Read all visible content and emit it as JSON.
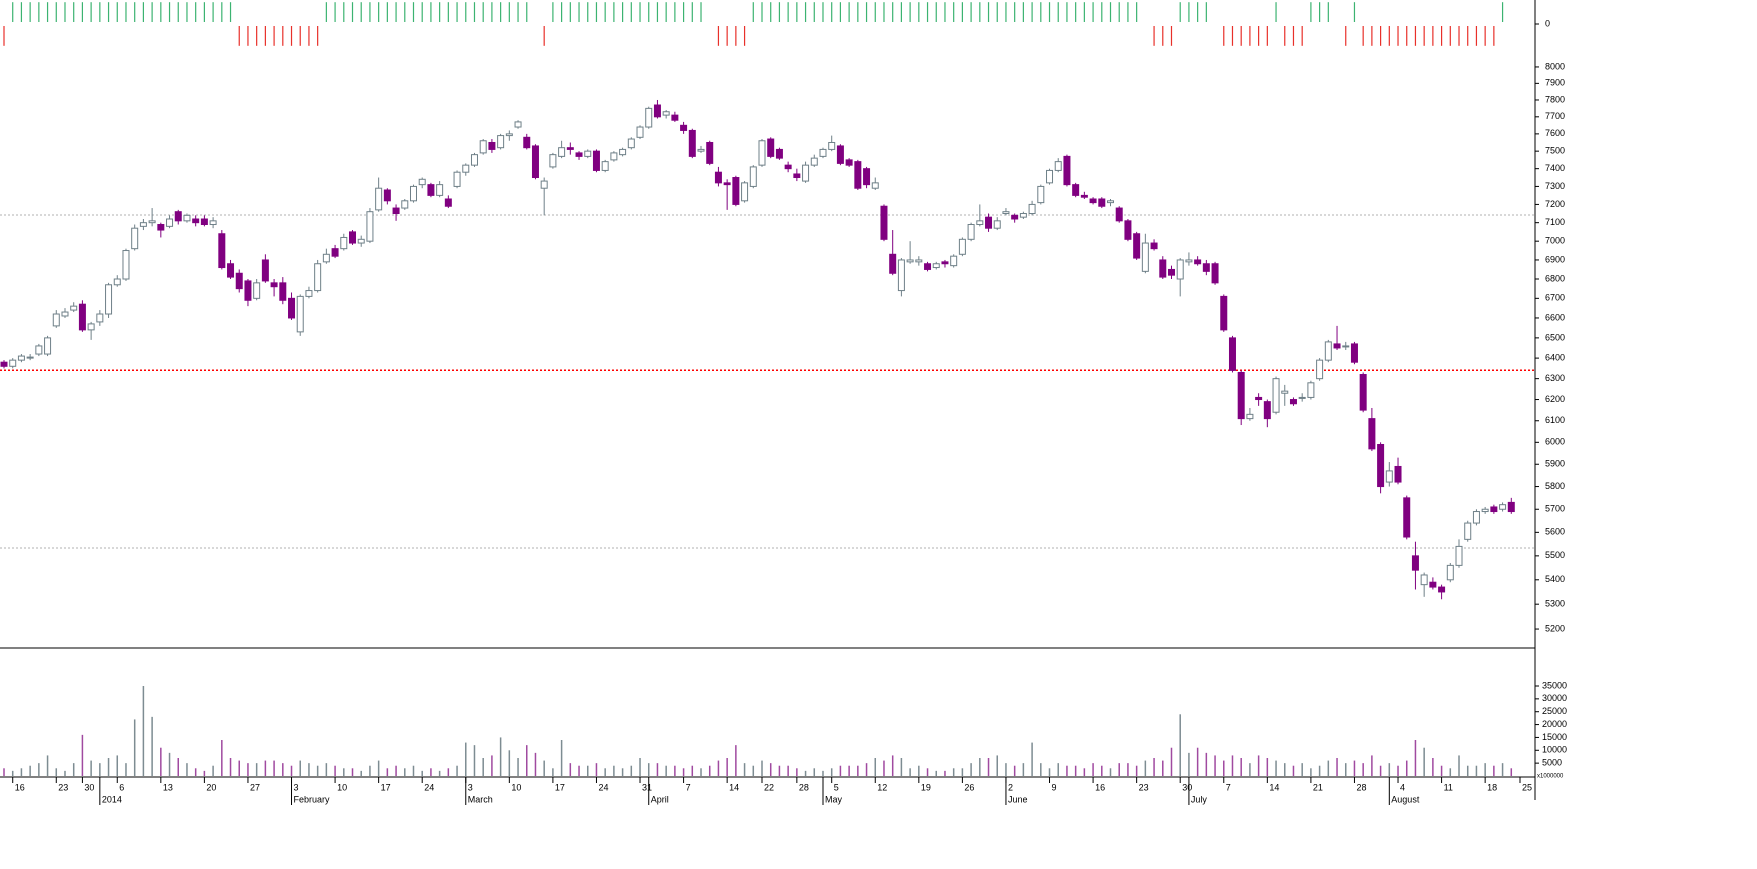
{
  "chart_data": {
    "type": "candlestick",
    "log_scale": true,
    "categories": [
      null,
      "16",
      null,
      null,
      null,
      null,
      "23",
      null,
      null,
      "30",
      null,
      null,
      null,
      "6",
      null,
      null,
      null,
      null,
      "13",
      null,
      null,
      null,
      null,
      "20",
      null,
      null,
      null,
      null,
      "27",
      null,
      null,
      null,
      null,
      "3",
      null,
      null,
      null,
      null,
      "10",
      null,
      null,
      null,
      null,
      "17",
      null,
      null,
      null,
      null,
      "24",
      null,
      null,
      null,
      null,
      "3",
      null,
      null,
      null,
      null,
      "10",
      null,
      null,
      null,
      null,
      "17",
      null,
      null,
      null,
      null,
      "24",
      null,
      null,
      null,
      null,
      "31",
      null,
      null,
      null,
      null,
      "7",
      null,
      null,
      null,
      null,
      "14",
      null,
      null,
      null,
      "22",
      null,
      null,
      null,
      "28",
      null,
      null,
      null,
      "5",
      null,
      null,
      null,
      null,
      "12",
      null,
      null,
      null,
      null,
      "19",
      null,
      null,
      null,
      null,
      "26",
      null,
      null,
      null,
      null,
      "2",
      null,
      null,
      null,
      null,
      "9",
      null,
      null,
      null,
      null,
      "16",
      null,
      null,
      null,
      null,
      "23",
      null,
      null,
      null,
      null,
      "30",
      null,
      null,
      null,
      null,
      "7",
      null,
      null,
      null,
      null,
      "14",
      null,
      null,
      null,
      null,
      "21",
      null,
      null,
      null,
      null,
      "28",
      null,
      null,
      null,
      null,
      "4",
      null,
      null,
      null,
      null,
      "11",
      null,
      null,
      null,
      null,
      "18",
      null,
      null,
      null,
      "25"
    ],
    "periods": [
      null,
      null,
      null,
      null,
      null,
      null,
      null,
      null,
      null,
      null,
      null,
      "2014",
      null,
      null,
      null,
      null,
      null,
      null,
      null,
      null,
      null,
      null,
      null,
      null,
      null,
      null,
      null,
      null,
      null,
      null,
      null,
      null,
      null,
      "February",
      null,
      null,
      null,
      null,
      null,
      null,
      null,
      null,
      null,
      null,
      null,
      null,
      null,
      null,
      null,
      null,
      null,
      null,
      null,
      "March",
      null,
      null,
      null,
      null,
      null,
      null,
      null,
      null,
      null,
      null,
      null,
      null,
      null,
      null,
      null,
      null,
      null,
      null,
      null,
      null,
      "April",
      null,
      null,
      null,
      null,
      null,
      null,
      null,
      null,
      null,
      null,
      null,
      null,
      null,
      null,
      null,
      null,
      null,
      null,
      null,
      "May",
      null,
      null,
      null,
      null,
      null,
      null,
      null,
      null,
      null,
      null,
      null,
      null,
      null,
      null,
      null,
      null,
      null,
      null,
      null,
      null,
      "June",
      null,
      null,
      null,
      null,
      null,
      null,
      null,
      null,
      null,
      null,
      null,
      null,
      null,
      null,
      null,
      null,
      null,
      null,
      null,
      null,
      "July",
      null,
      null,
      null,
      null,
      null,
      null,
      null,
      null,
      null,
      null,
      null,
      null,
      null,
      null,
      null,
      null,
      null,
      null,
      null,
      null,
      null,
      null,
      "August",
      null,
      null,
      null,
      null,
      null,
      null,
      null,
      null,
      null,
      null,
      null,
      null,
      null,
      null,
      null
    ],
    "open": [
      6380,
      6360,
      6390,
      6400,
      6420,
      6420,
      6560,
      6610,
      6640,
      6670,
      6540,
      6580,
      6620,
      6770,
      6800,
      6960,
      7080,
      7100,
      7090,
      7080,
      7160,
      7110,
      7120,
      7120,
      7090,
      7040,
      6880,
      6830,
      6790,
      6700,
      6900,
      6780,
      6780,
      6700,
      6530,
      6710,
      6740,
      6890,
      6960,
      6960,
      7050,
      6990,
      7000,
      7170,
      7280,
      7180,
      7180,
      7220,
      7310,
      7310,
      7250,
      7230,
      7300,
      7380,
      7420,
      7490,
      7550,
      7520,
      7590,
      7640,
      7580,
      7530,
      7290,
      7410,
      7470,
      7520,
      7490,
      7470,
      7500,
      7390,
      7450,
      7480,
      7520,
      7580,
      7640,
      7770,
      7710,
      7710,
      7650,
      7620,
      7500,
      7550,
      7380,
      7320,
      7350,
      7220,
      7300,
      7420,
      7570,
      7510,
      7420,
      7370,
      7330,
      7420,
      7470,
      7510,
      7530,
      7450,
      7440,
      7400,
      7290,
      7190,
      6930,
      6740,
      6890,
      6890,
      6880,
      6860,
      6890,
      6870,
      6930,
      7010,
      7090,
      7130,
      7070,
      7150,
      7140,
      7130,
      7150,
      7210,
      7320,
      7390,
      7470,
      7310,
      7250,
      7230,
      7230,
      7210,
      7180,
      7110,
      7040,
      6840,
      6990,
      6900,
      6850,
      6800,
      6890,
      6900,
      6880,
      6880,
      6710,
      6500,
      6330,
      6110,
      6210,
      6190,
      6140,
      6230,
      6200,
      6210,
      6210,
      6300,
      6390,
      6470,
      6460,
      6470,
      6320,
      6110,
      5990,
      5820,
      5890,
      5750,
      5500,
      5380,
      5390,
      5370,
      5400,
      5460,
      5570,
      5640,
      5690,
      5710,
      5700,
      5730,
      null
    ],
    "high": [
      6390,
      6400,
      6420,
      6420,
      6470,
      6510,
      6640,
      6650,
      6680,
      6690,
      6580,
      6640,
      6780,
      6820,
      6960,
      7090,
      7120,
      7180,
      7100,
      7140,
      7170,
      7150,
      7140,
      7140,
      7130,
      7060,
      6900,
      6850,
      6800,
      6800,
      6930,
      6800,
      6810,
      6730,
      6720,
      6760,
      6900,
      6960,
      6980,
      7040,
      7060,
      7030,
      7180,
      7350,
      7290,
      7200,
      7230,
      7310,
      7350,
      7320,
      7330,
      7250,
      7390,
      7430,
      7490,
      7570,
      7570,
      7600,
      7620,
      7680,
      7600,
      7540,
      7350,
      7490,
      7560,
      7550,
      7500,
      7510,
      7510,
      7450,
      7500,
      7520,
      7580,
      7650,
      7760,
      7800,
      7740,
      7730,
      7670,
      7630,
      7530,
      7560,
      7410,
      7340,
      7360,
      7330,
      7420,
      7570,
      7580,
      7520,
      7440,
      7400,
      7440,
      7480,
      7520,
      7590,
      7540,
      7460,
      7450,
      7410,
      7350,
      7200,
      7060,
      6910,
      7000,
      6920,
      6890,
      6890,
      6900,
      6930,
      7020,
      7100,
      7200,
      7150,
      7130,
      7180,
      7150,
      7160,
      7220,
      7310,
      7400,
      7460,
      7480,
      7320,
      7270,
      7240,
      7240,
      7230,
      7190,
      7120,
      7050,
      7040,
      7010,
      6920,
      6870,
      6910,
      6940,
      6920,
      6900,
      6890,
      6720,
      6510,
      6340,
      6160,
      6230,
      6200,
      6310,
      6270,
      6210,
      6230,
      6290,
      6400,
      6490,
      6560,
      6480,
      6480,
      6330,
      6160,
      6000,
      5910,
      5930,
      5760,
      5560,
      5430,
      5410,
      5380,
      5470,
      5570,
      5650,
      5700,
      5710,
      5720,
      5730,
      5750,
      null
    ],
    "low": [
      6350,
      6350,
      6380,
      6390,
      6410,
      6410,
      6550,
      6600,
      6630,
      6530,
      6490,
      6560,
      6600,
      6760,
      6790,
      6950,
      7060,
      7080,
      7020,
      7070,
      7090,
      7100,
      7080,
      7080,
      7070,
      6850,
      6800,
      6730,
      6660,
      6690,
      6780,
      6710,
      6670,
      6590,
      6510,
      6700,
      6730,
      6880,
      6910,
      6950,
      6980,
      6970,
      6990,
      7160,
      7200,
      7110,
      7170,
      7210,
      7290,
      7240,
      7240,
      7180,
      7290,
      7360,
      7410,
      7480,
      7490,
      7510,
      7560,
      7630,
      7510,
      7340,
      7140,
      7400,
      7460,
      7480,
      7450,
      7460,
      7380,
      7380,
      7440,
      7470,
      7510,
      7570,
      7630,
      7690,
      7690,
      7670,
      7600,
      7460,
      7490,
      7420,
      7300,
      7170,
      7190,
      7210,
      7290,
      7410,
      7460,
      7450,
      7380,
      7330,
      7320,
      7410,
      7460,
      7500,
      7420,
      7410,
      7280,
      7290,
      7280,
      7000,
      6820,
      6710,
      6880,
      6870,
      6840,
      6850,
      6860,
      6860,
      6920,
      7000,
      7080,
      7050,
      7060,
      7140,
      7100,
      7120,
      7140,
      7200,
      7310,
      7380,
      7300,
      7240,
      7230,
      7200,
      7180,
      7190,
      7100,
      7000,
      6900,
      6830,
      6950,
      6800,
      6800,
      6710,
      6870,
      6870,
      6820,
      6770,
      6530,
      6330,
      6080,
      6100,
      6170,
      6070,
      6130,
      6170,
      6170,
      6190,
      6200,
      6290,
      6380,
      6440,
      6440,
      6370,
      6140,
      5960,
      5770,
      5800,
      5810,
      5570,
      5360,
      5330,
      5360,
      5320,
      5390,
      5450,
      5560,
      5630,
      5680,
      5680,
      5690,
      5680,
      null
    ],
    "close": [
      6360,
      6390,
      6410,
      6405,
      6460,
      6500,
      6620,
      6630,
      6660,
      6540,
      6570,
      6620,
      6770,
      6800,
      6950,
      7070,
      7100,
      7110,
      7060,
      7120,
      7110,
      7140,
      7100,
      7090,
      7110,
      6860,
      6810,
      6750,
      6690,
      6780,
      6790,
      6760,
      6690,
      6600,
      6710,
      6740,
      6880,
      6930,
      6920,
      7020,
      6990,
      7010,
      7160,
      7290,
      7220,
      7150,
      7220,
      7300,
      7340,
      7250,
      7310,
      7190,
      7380,
      7420,
      7480,
      7560,
      7510,
      7590,
      7600,
      7670,
      7520,
      7350,
      7330,
      7480,
      7520,
      7510,
      7470,
      7500,
      7390,
      7440,
      7490,
      7510,
      7570,
      7640,
      7750,
      7700,
      7730,
      7680,
      7620,
      7470,
      7510,
      7430,
      7320,
      7310,
      7200,
      7320,
      7410,
      7560,
      7470,
      7460,
      7400,
      7350,
      7420,
      7460,
      7510,
      7550,
      7430,
      7420,
      7290,
      7310,
      7320,
      7010,
      6830,
      6900,
      6900,
      6900,
      6850,
      6880,
      6880,
      6920,
      7010,
      7090,
      7110,
      7070,
      7110,
      7160,
      7120,
      7150,
      7200,
      7300,
      7390,
      7440,
      7310,
      7250,
      7240,
      7210,
      7190,
      7220,
      7110,
      7010,
      6910,
      6990,
      6960,
      6810,
      6820,
      6900,
      6900,
      6880,
      6840,
      6780,
      6540,
      6340,
      6110,
      6130,
      6200,
      6110,
      6300,
      6240,
      6180,
      6210,
      6280,
      6390,
      6480,
      6450,
      6460,
      6380,
      6150,
      5970,
      5800,
      5870,
      5820,
      5580,
      5440,
      5420,
      5370,
      5350,
      5460,
      5540,
      5640,
      5690,
      5700,
      5690,
      5720,
      5690,
      null
    ],
    "volume": [
      3000,
      2000,
      3000,
      4000,
      5000,
      8000,
      3000,
      2000,
      5000,
      16000,
      6000,
      5000,
      7000,
      8000,
      5000,
      22000,
      35000,
      23000,
      11000,
      9000,
      7000,
      5000,
      3000,
      2000,
      4000,
      14000,
      7000,
      6000,
      5000,
      5000,
      6000,
      6000,
      5000,
      4000,
      6000,
      5000,
      4000,
      5000,
      4000,
      3000,
      3000,
      2000,
      4000,
      6000,
      3000,
      4000,
      3000,
      4000,
      2000,
      3000,
      2000,
      3000,
      4000,
      13000,
      12000,
      7000,
      8000,
      15000,
      10000,
      7000,
      12000,
      9000,
      6000,
      3000,
      14000,
      5000,
      4000,
      4000,
      5000,
      3000,
      4000,
      3000,
      4000,
      7000,
      5000,
      5000,
      4000,
      4000,
      3000,
      4000,
      3000,
      4000,
      6000,
      7000,
      12000,
      5000,
      4000,
      6000,
      5000,
      4000,
      4000,
      3000,
      2000,
      3000,
      2000,
      3000,
      4000,
      4000,
      4000,
      5000,
      7000,
      6000,
      8000,
      7000,
      3000,
      4000,
      3000,
      2000,
      2000,
      3000,
      3000,
      5000,
      7000,
      7000,
      8000,
      5000,
      4000,
      5000,
      13000,
      5000,
      3000,
      5000,
      4000,
      4000,
      3000,
      5000,
      4000,
      3000,
      5000,
      5000,
      4000,
      6000,
      7000,
      6000,
      11000,
      24000,
      9000,
      11000,
      9000,
      8000,
      6000,
      8000,
      7000,
      5000,
      8000,
      7000,
      6000,
      5000,
      4000,
      5000,
      3000,
      4000,
      6000,
      7000,
      5000,
      6000,
      5000,
      8000,
      4000,
      5000,
      4000,
      6000,
      14000,
      11000,
      7000,
      4000,
      3000,
      8000,
      4000,
      4000,
      5000,
      4000,
      5000,
      3000,
      null
    ],
    "signal": [
      -1,
      1,
      1,
      1,
      1,
      1,
      1,
      1,
      1,
      1,
      1,
      1,
      1,
      1,
      1,
      1,
      1,
      1,
      1,
      1,
      1,
      1,
      1,
      1,
      1,
      1,
      1,
      -1,
      -1,
      -1,
      -1,
      -1,
      -1,
      -1,
      -1,
      -1,
      -1,
      1,
      1,
      1,
      1,
      1,
      1,
      1,
      1,
      1,
      1,
      1,
      1,
      1,
      1,
      1,
      1,
      1,
      1,
      1,
      1,
      1,
      1,
      1,
      1,
      0,
      -1,
      1,
      1,
      1,
      1,
      1,
      1,
      1,
      1,
      1,
      1,
      1,
      1,
      1,
      1,
      1,
      1,
      1,
      1,
      0,
      -1,
      -1,
      -1,
      -1,
      1,
      1,
      1,
      1,
      1,
      1,
      1,
      1,
      1,
      1,
      1,
      1,
      1,
      1,
      1,
      1,
      1,
      1,
      1,
      1,
      1,
      1,
      1,
      1,
      1,
      1,
      1,
      1,
      1,
      1,
      1,
      1,
      1,
      1,
      1,
      1,
      1,
      1,
      1,
      1,
      1,
      1,
      1,
      1,
      1,
      0,
      -1,
      -1,
      -1,
      1,
      1,
      1,
      1,
      0,
      -1,
      -1,
      -1,
      -1,
      -1,
      -1,
      1,
      -1,
      -1,
      -1,
      1,
      1,
      1,
      0,
      -1,
      1,
      -1,
      -1,
      -1,
      -1,
      -1,
      -1,
      -1,
      -1,
      -1,
      -1,
      -1,
      -1,
      -1,
      -1,
      -1,
      -1,
      1,
      0,
      null
    ],
    "ylim": [
      5125,
      8117
    ],
    "yticks": [
      5200,
      5300,
      5400,
      5500,
      5600,
      5700,
      5800,
      5900,
      6000,
      6100,
      6200,
      6300,
      6400,
      6500,
      6600,
      6700,
      6800,
      6900,
      7000,
      7100,
      7200,
      7300,
      7400,
      7500,
      7600,
      7700,
      7800,
      7900,
      8000
    ],
    "volume_lim": [
      0,
      49000
    ],
    "volume_ticks": [
      5000,
      10000,
      15000,
      20000,
      25000,
      30000,
      35000
    ],
    "volume_unit": "x1000000",
    "signal_lim": [
      -1.1,
      1.1
    ],
    "signal_ticks": [
      0
    ],
    "reference_lines": [
      {
        "value": 7142,
        "color": "#b0b0b0"
      },
      {
        "value": 6341,
        "color": "#ff0000"
      },
      {
        "value": 5533,
        "color": "#b0b0b0"
      }
    ],
    "up_color": "#ffffff",
    "up_edge": "#6f8088",
    "down_color": "#800080",
    "volume_up_color": "#7d8c92",
    "volume_down_color": "#a04aa0",
    "signal_up_color": "#3cb371",
    "signal_down_color": "#e8302a"
  }
}
